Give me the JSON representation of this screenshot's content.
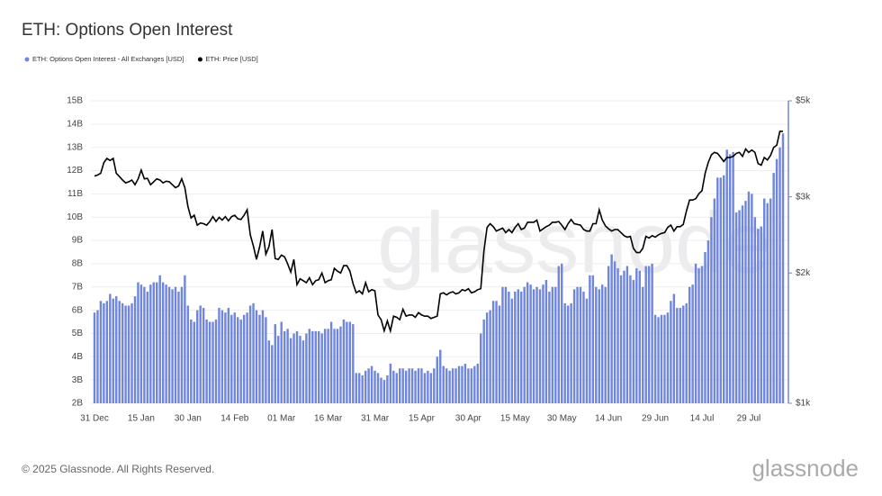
{
  "chart_data": {
    "type": "bar-line",
    "title": "ETH: Options Open Interest",
    "footer": "© 2025 Glassnode. All Rights Reserved.",
    "logo": "glassnode",
    "watermark": "glassnode",
    "legend": "top-left",
    "grid": true,
    "ylim": [
      2,
      15
    ],
    "yticks": [
      {
        "value": 2,
        "label": "2B"
      },
      {
        "value": 3,
        "label": "3B"
      },
      {
        "value": 4,
        "label": "4B"
      },
      {
        "value": 5,
        "label": "5B"
      },
      {
        "value": 6,
        "label": "6B"
      },
      {
        "value": 7,
        "label": "7B"
      },
      {
        "value": 8,
        "label": "8B"
      },
      {
        "value": 9,
        "label": "9B"
      },
      {
        "value": 10,
        "label": "10B"
      },
      {
        "value": 11,
        "label": "11B"
      },
      {
        "value": 12,
        "label": "12B"
      },
      {
        "value": 13,
        "label": "13B"
      },
      {
        "value": 14,
        "label": "14B"
      },
      {
        "value": 15,
        "label": "15B"
      }
    ],
    "y2lim": [
      1000,
      5000
    ],
    "y2scale": "log",
    "y2ticks": [
      {
        "value": 1000,
        "label": "$1k"
      },
      {
        "value": 2000,
        "label": "$2k"
      },
      {
        "value": 3000,
        "label": "$3k"
      },
      {
        "value": 5000,
        "label": "$5k"
      }
    ],
    "categories": [
      "31 Dec",
      null,
      null,
      null,
      null,
      null,
      null,
      null,
      null,
      null,
      null,
      null,
      null,
      null,
      null,
      "15 Jan",
      null,
      null,
      null,
      null,
      null,
      null,
      null,
      null,
      null,
      null,
      null,
      null,
      null,
      null,
      "30 Jan",
      null,
      null,
      null,
      null,
      null,
      null,
      null,
      null,
      null,
      null,
      null,
      null,
      null,
      null,
      "14 Feb",
      null,
      null,
      null,
      null,
      null,
      null,
      null,
      null,
      null,
      null,
      null,
      null,
      null,
      null,
      "01 Mar",
      null,
      null,
      null,
      null,
      null,
      null,
      null,
      null,
      null,
      null,
      null,
      null,
      null,
      null,
      "16 Mar",
      null,
      null,
      null,
      null,
      null,
      null,
      null,
      null,
      null,
      null,
      null,
      null,
      null,
      null,
      "31 Mar",
      null,
      null,
      null,
      null,
      null,
      null,
      null,
      null,
      null,
      null,
      null,
      null,
      null,
      null,
      "15 Apr",
      null,
      null,
      null,
      null,
      null,
      null,
      null,
      null,
      null,
      null,
      null,
      null,
      null,
      null,
      "30 Apr",
      null,
      null,
      null,
      null,
      null,
      null,
      null,
      null,
      null,
      null,
      null,
      null,
      null,
      null,
      "15 May",
      null,
      null,
      null,
      null,
      null,
      null,
      null,
      null,
      null,
      null,
      null,
      null,
      null,
      null,
      "30 May",
      null,
      null,
      null,
      null,
      null,
      null,
      null,
      null,
      null,
      null,
      null,
      null,
      null,
      null,
      "14 Jun",
      null,
      null,
      null,
      null,
      null,
      null,
      null,
      null,
      null,
      null,
      null,
      null,
      null,
      null,
      "29 Jun",
      null,
      null,
      null,
      null,
      null,
      null,
      null,
      null,
      null,
      null,
      null,
      null,
      null,
      null,
      "14 Jul",
      null,
      null,
      null,
      null,
      null,
      null,
      null,
      null,
      null,
      null,
      null,
      null,
      null,
      null,
      "29 Jul",
      null,
      null,
      null,
      null,
      null,
      null,
      null,
      null,
      null,
      null,
      null
    ],
    "series": [
      {
        "name": "ETH: Options Open Interest - All Exchanges [USD]",
        "color": "#7086dc",
        "kind": "bar",
        "values": [
          5.9,
          6.0,
          6.4,
          6.3,
          6.4,
          6.7,
          6.5,
          6.6,
          6.4,
          6.3,
          6.2,
          6.2,
          6.3,
          6.6,
          7.2,
          7.1,
          7.0,
          6.8,
          7.1,
          7.2,
          7.2,
          7.5,
          7.2,
          7.1,
          7.0,
          6.9,
          7.0,
          6.8,
          7.0,
          7.5,
          6.2,
          5.6,
          5.5,
          6.0,
          6.2,
          6.1,
          5.6,
          5.5,
          5.5,
          5.6,
          6.1,
          6.0,
          5.9,
          6.1,
          5.8,
          5.9,
          5.7,
          5.6,
          5.8,
          5.9,
          6.2,
          6.3,
          6.0,
          5.8,
          6.0,
          5.7,
          4.7,
          4.5,
          5.4,
          4.9,
          5.5,
          5.1,
          5.2,
          4.8,
          5.0,
          5.1,
          4.9,
          4.7,
          5.0,
          5.2,
          5.1,
          5.1,
          5.1,
          5.0,
          5.2,
          5.2,
          5.5,
          5.2,
          5.2,
          5.3,
          5.6,
          5.5,
          5.5,
          5.4,
          3.3,
          3.3,
          3.2,
          3.4,
          3.5,
          3.6,
          3.4,
          3.3,
          3.1,
          3.0,
          3.2,
          3.7,
          3.4,
          3.3,
          3.5,
          3.5,
          3.4,
          3.5,
          3.5,
          3.4,
          3.5,
          3.5,
          3.3,
          3.4,
          3.3,
          3.5,
          4.0,
          4.3,
          3.6,
          3.5,
          3.4,
          3.5,
          3.5,
          3.6,
          3.6,
          3.7,
          3.5,
          3.5,
          3.6,
          3.7,
          5.0,
          5.6,
          5.9,
          6.0,
          6.4,
          6.4,
          6.2,
          7.0,
          7.0,
          6.8,
          6.5,
          6.8,
          6.9,
          6.8,
          7.0,
          7.2,
          7.1,
          6.9,
          7.0,
          6.9,
          7.1,
          7.3,
          6.8,
          7.0,
          7.0,
          7.9,
          8.0,
          6.3,
          6.2,
          6.3,
          6.9,
          7.0,
          7.0,
          6.8,
          6.5,
          7.5,
          7.5,
          7.0,
          6.9,
          7.1,
          7.0,
          7.9,
          8.4,
          8.1,
          7.8,
          7.5,
          7.7,
          7.9,
          7.5,
          7.3,
          7.8,
          7.7,
          7.0,
          7.9,
          7.9,
          8.0,
          5.8,
          5.7,
          5.8,
          5.8,
          5.9,
          6.4,
          6.7,
          6.1,
          6.1,
          6.2,
          6.3,
          7.0,
          7.1,
          8.0,
          7.8,
          7.9,
          8.5,
          9.0,
          10.0,
          10.8,
          11.7,
          11.7,
          11.8,
          12.9,
          12.7,
          12.8,
          10.2,
          10.3,
          10.5,
          10.7,
          11.1,
          11.0,
          10.0,
          9.5,
          9.6,
          10.8,
          10.6,
          10.8,
          11.9,
          12.5,
          13.0,
          13.6
        ]
      },
      {
        "name": "ETH: Price [USD]",
        "color": "#000000",
        "kind": "line",
        "axis": "y2",
        "values": [
          3350,
          3370,
          3400,
          3600,
          3680,
          3640,
          3680,
          3400,
          3340,
          3280,
          3230,
          3250,
          3280,
          3200,
          3300,
          3460,
          3300,
          3310,
          3200,
          3250,
          3300,
          3280,
          3230,
          3260,
          3250,
          3200,
          3150,
          3180,
          3300,
          3150,
          2850,
          2680,
          2720,
          2580,
          2610,
          2600,
          2580,
          2630,
          2700,
          2630,
          2690,
          2650,
          2700,
          2640,
          2700,
          2720,
          2670,
          2660,
          2720,
          2800,
          2450,
          2310,
          2150,
          2300,
          2500,
          2210,
          2300,
          2520,
          2160,
          2150,
          2200,
          2180,
          2100,
          2010,
          2150,
          1880,
          1940,
          1920,
          1900,
          1950,
          1880,
          1920,
          1930,
          2000,
          1900,
          1920,
          1930,
          2050,
          2020,
          2000,
          2080,
          2080,
          2020,
          1890,
          1800,
          1820,
          1790,
          1900,
          1810,
          1830,
          1820,
          1600,
          1560,
          1470,
          1550,
          1470,
          1590,
          1580,
          1560,
          1650,
          1590,
          1600,
          1600,
          1580,
          1620,
          1600,
          1590,
          1590,
          1570,
          1580,
          1590,
          1790,
          1800,
          1780,
          1800,
          1810,
          1790,
          1800,
          1830,
          1820,
          1840,
          1800,
          1810,
          1830,
          1840,
          2250,
          2550,
          2600,
          2560,
          2500,
          2520,
          2540,
          2480,
          2520,
          2480,
          2550,
          2600,
          2520,
          2540,
          2620,
          2620,
          2620,
          2650,
          2500,
          2530,
          2560,
          2580,
          2620,
          2620,
          2630,
          2580,
          2520,
          2600,
          2660,
          2600,
          2590,
          2580,
          2520,
          2500,
          2500,
          2600,
          2600,
          2800,
          2650,
          2570,
          2530,
          2500,
          2520,
          2520,
          2480,
          2440,
          2420,
          2430,
          2280,
          2230,
          2230,
          2280,
          2430,
          2410,
          2440,
          2420,
          2450,
          2470,
          2480,
          2550,
          2580,
          2500,
          2560,
          2560,
          2590,
          2780,
          2950,
          2950,
          2970,
          3050,
          3100,
          3400,
          3600,
          3750,
          3800,
          3780,
          3700,
          3620,
          3700,
          3700,
          3720,
          3780,
          3800,
          3720,
          3870,
          3800,
          3850,
          3800,
          3580,
          3550,
          3700,
          3650,
          3740,
          3900,
          3950,
          4250,
          4250
        ]
      }
    ]
  }
}
